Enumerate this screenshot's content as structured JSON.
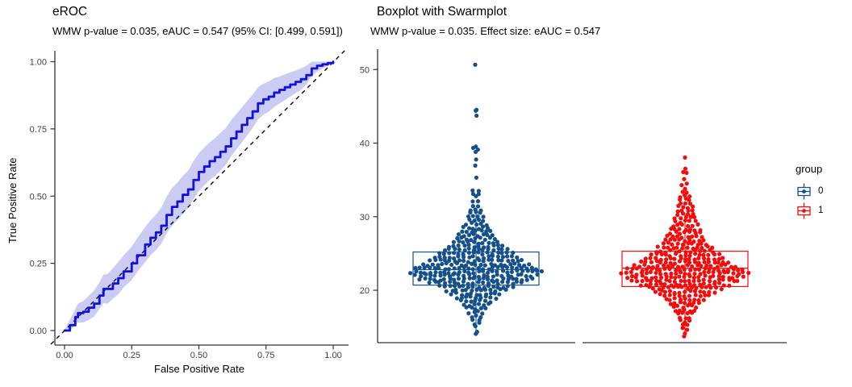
{
  "left_plot": {
    "title": "eROC",
    "subtitle": "WMW p-value = 0.035, eAUC = 0.547 (95% CI: [0.499, 0.591])",
    "xlabel": "False Positive Rate",
    "ylabel": "True Positive Rate",
    "x_tick_labels": [
      "0.00",
      "0.25",
      "0.50",
      "0.75",
      "1.00"
    ],
    "y_tick_labels": [
      "0.00",
      "0.25",
      "0.50",
      "0.75",
      "1.00"
    ]
  },
  "right_plot": {
    "title": "Boxplot with Swarmplot",
    "subtitle": "WMW p-value = 0.035. Effect size: eAUC = 0.547",
    "y_tick_labels": [
      "20",
      "30",
      "40",
      "50"
    ]
  },
  "legend": {
    "title": "group",
    "items": [
      {
        "label": "0",
        "color": "#14508C"
      },
      {
        "label": "1",
        "color": "#F40C0C"
      }
    ]
  },
  "colors": {
    "roc_line": "#1212DC",
    "roc_band": "#CBCBF4",
    "reference_line": "#000000",
    "group0": "#14508C",
    "group1": "#F40C0C",
    "axis": "#333333",
    "tick_label": "#404040"
  },
  "chart_data": [
    {
      "type": "line",
      "title": "eROC",
      "subtitle": "WMW p-value = 0.035, eAUC = 0.547 (95% CI: [0.499, 0.591])",
      "xlabel": "False Positive Rate",
      "ylabel": "True Positive Rate",
      "xlim": [
        0,
        1
      ],
      "ylim": [
        0,
        1
      ],
      "x_ticks": [
        0,
        0.25,
        0.5,
        0.75,
        1.0
      ],
      "y_ticks": [
        0,
        0.25,
        0.5,
        0.75,
        1.0
      ],
      "legend_position": "none",
      "grid": false,
      "series": [
        {
          "name": "eROC curve",
          "x": [
            0.0,
            0.02,
            0.04,
            0.05,
            0.07,
            0.09,
            0.11,
            0.13,
            0.145,
            0.16,
            0.18,
            0.2,
            0.22,
            0.25,
            0.27,
            0.3,
            0.32,
            0.34,
            0.36,
            0.38,
            0.4,
            0.42,
            0.44,
            0.46,
            0.48,
            0.5,
            0.52,
            0.54,
            0.56,
            0.58,
            0.6,
            0.62,
            0.64,
            0.66,
            0.68,
            0.7,
            0.72,
            0.74,
            0.76,
            0.78,
            0.8,
            0.82,
            0.84,
            0.86,
            0.88,
            0.9,
            0.92,
            0.94,
            0.96,
            0.98,
            1.0
          ],
          "y": [
            0.0,
            0.02,
            0.05,
            0.065,
            0.07,
            0.085,
            0.1,
            0.13,
            0.155,
            0.155,
            0.175,
            0.195,
            0.22,
            0.25,
            0.28,
            0.32,
            0.345,
            0.365,
            0.39,
            0.43,
            0.46,
            0.48,
            0.505,
            0.525,
            0.56,
            0.59,
            0.61,
            0.63,
            0.645,
            0.665,
            0.685,
            0.715,
            0.74,
            0.765,
            0.79,
            0.815,
            0.845,
            0.86,
            0.87,
            0.885,
            0.895,
            0.905,
            0.915,
            0.925,
            0.935,
            0.95,
            0.975,
            0.985,
            0.99,
            0.995,
            1.0
          ],
          "ci_halfwidth": [
            0.005,
            0.02,
            0.03,
            0.035,
            0.04,
            0.045,
            0.048,
            0.05,
            0.053,
            0.055,
            0.057,
            0.06,
            0.06,
            0.062,
            0.063,
            0.065,
            0.065,
            0.066,
            0.067,
            0.068,
            0.07,
            0.07,
            0.07,
            0.07,
            0.07,
            0.07,
            0.07,
            0.07,
            0.07,
            0.07,
            0.068,
            0.067,
            0.066,
            0.065,
            0.064,
            0.062,
            0.06,
            0.058,
            0.056,
            0.054,
            0.05,
            0.048,
            0.045,
            0.042,
            0.04,
            0.035,
            0.028,
            0.022,
            0.016,
            0.01,
            0.004
          ]
        },
        {
          "name": "reference diagonal",
          "style": "dashed",
          "x": [
            0,
            1
          ],
          "y": [
            0,
            1
          ]
        }
      ]
    },
    {
      "type": "boxplot-swarm",
      "title": "Boxplot with Swarmplot",
      "subtitle": "WMW p-value = 0.035. Effect size: eAUC = 0.547",
      "ylim": [
        13,
        52
      ],
      "y_ticks": [
        20,
        30,
        40,
        50
      ],
      "legend_title": "group",
      "legend_position": "right",
      "groups": [
        {
          "name": "0",
          "color": "#14508C",
          "box": {
            "q1": 20.7,
            "median": 22.8,
            "q3": 25.2,
            "whisker_low": 14.0,
            "whisker_high": 30.9
          },
          "swarm_bins": [
            [
              50.7,
              1
            ],
            [
              44.7,
              1
            ],
            [
              44.3,
              1
            ],
            [
              43.7,
              1
            ],
            [
              39.6,
              1
            ],
            [
              39.3,
              2
            ],
            [
              38.9,
              1
            ],
            [
              37.6,
              1
            ],
            [
              36.9,
              1
            ],
            [
              35.4,
              1
            ],
            [
              33.6,
              2
            ],
            [
              33.2,
              2
            ],
            [
              32.7,
              1
            ],
            [
              32.1,
              2
            ],
            [
              31.5,
              2
            ],
            [
              31.0,
              3
            ],
            [
              30.5,
              3
            ],
            [
              30.0,
              4
            ],
            [
              29.5,
              4
            ],
            [
              29.0,
              5
            ],
            [
              28.5,
              6
            ],
            [
              28.0,
              7
            ],
            [
              27.5,
              8
            ],
            [
              27.0,
              9
            ],
            [
              26.5,
              10
            ],
            [
              26.0,
              12
            ],
            [
              25.5,
              14
            ],
            [
              25.0,
              16
            ],
            [
              24.5,
              18
            ],
            [
              24.0,
              20
            ],
            [
              23.5,
              23
            ],
            [
              23.0,
              26
            ],
            [
              22.5,
              28
            ],
            [
              22.0,
              26
            ],
            [
              21.5,
              24
            ],
            [
              21.0,
              20
            ],
            [
              20.5,
              16
            ],
            [
              20.0,
              13
            ],
            [
              19.5,
              11
            ],
            [
              19.0,
              9
            ],
            [
              18.5,
              7
            ],
            [
              18.0,
              6
            ],
            [
              17.5,
              5
            ],
            [
              17.0,
              4
            ],
            [
              16.5,
              3
            ],
            [
              16.0,
              2
            ],
            [
              15.5,
              2
            ],
            [
              15.0,
              1
            ],
            [
              14.5,
              1
            ],
            [
              14.0,
              1
            ]
          ]
        },
        {
          "name": "1",
          "color": "#F40C0C",
          "box": {
            "q1": 20.5,
            "median": 23.0,
            "q3": 25.3,
            "whisker_low": 14.3,
            "whisker_high": 30.5
          },
          "swarm_bins": [
            [
              38.0,
              1
            ],
            [
              36.6,
              1
            ],
            [
              35.9,
              2
            ],
            [
              35.2,
              1
            ],
            [
              34.4,
              2
            ],
            [
              33.8,
              1
            ],
            [
              33.3,
              2
            ],
            [
              32.8,
              3
            ],
            [
              32.3,
              3
            ],
            [
              31.8,
              3
            ],
            [
              31.3,
              4
            ],
            [
              30.8,
              4
            ],
            [
              30.3,
              4
            ],
            [
              29.8,
              5
            ],
            [
              29.3,
              5
            ],
            [
              28.8,
              6
            ],
            [
              28.3,
              7
            ],
            [
              27.8,
              7
            ],
            [
              27.3,
              8
            ],
            [
              26.8,
              9
            ],
            [
              26.3,
              10
            ],
            [
              25.8,
              12
            ],
            [
              25.3,
              13
            ],
            [
              24.8,
              15
            ],
            [
              24.3,
              17
            ],
            [
              23.8,
              19
            ],
            [
              23.3,
              22
            ],
            [
              22.8,
              25
            ],
            [
              22.3,
              27
            ],
            [
              21.8,
              25
            ],
            [
              21.3,
              23
            ],
            [
              20.8,
              19
            ],
            [
              20.3,
              16
            ],
            [
              19.8,
              13
            ],
            [
              19.3,
              11
            ],
            [
              18.8,
              9
            ],
            [
              18.3,
              7
            ],
            [
              17.8,
              6
            ],
            [
              17.3,
              5
            ],
            [
              16.8,
              4
            ],
            [
              16.3,
              3
            ],
            [
              15.8,
              3
            ],
            [
              15.3,
              2
            ],
            [
              14.8,
              2
            ],
            [
              14.3,
              1
            ],
            [
              13.8,
              1
            ]
          ]
        }
      ]
    }
  ]
}
